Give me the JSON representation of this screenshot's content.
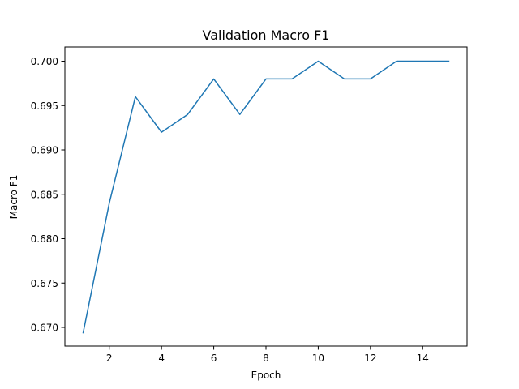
{
  "chart_data": {
    "type": "line",
    "title": "Validation Macro F1",
    "xlabel": "Epoch",
    "ylabel": "Macro F1",
    "xlim": [
      0.3,
      15.7
    ],
    "ylim": [
      0.6679,
      0.7016
    ],
    "xticks": [
      2,
      4,
      6,
      8,
      10,
      12,
      14
    ],
    "xtick_labels": [
      "2",
      "4",
      "6",
      "8",
      "10",
      "12",
      "14"
    ],
    "yticks": [
      0.67,
      0.675,
      0.68,
      0.685,
      0.69,
      0.695,
      0.7
    ],
    "ytick_labels": [
      "0.670",
      "0.675",
      "0.680",
      "0.685",
      "0.690",
      "0.695",
      "0.700"
    ],
    "grid": false,
    "series": [
      {
        "color": "#1f77b4",
        "x": [
          1,
          2,
          3,
          4,
          5,
          6,
          7,
          8,
          9,
          10,
          11,
          12,
          13,
          14,
          15
        ],
        "y": [
          0.6694,
          0.684,
          0.696,
          0.692,
          0.694,
          0.698,
          0.694,
          0.698,
          0.698,
          0.7,
          0.698,
          0.698,
          0.7,
          0.7,
          0.7
        ]
      }
    ]
  }
}
